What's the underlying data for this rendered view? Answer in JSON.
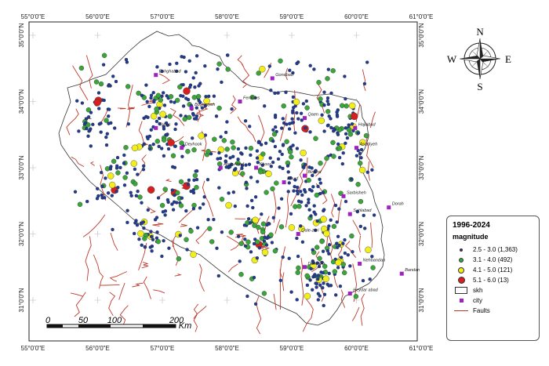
{
  "map": {
    "longitude_labels": [
      "55°0'0\"E",
      "56°0'0\"E",
      "57°0'0\"E",
      "58°0'0\"E",
      "59°0'0\"E",
      "60°0'0\"E",
      "61°0'0\"E"
    ],
    "latitude_labels": [
      "35°0'0\"N",
      "34°0'0\"N",
      "33°0'0\"N",
      "32°0'0\"N",
      "31°0'0\"N"
    ],
    "cities": [
      {
        "name": "Ferdows",
        "lon": 58.2,
        "lat": 34.0
      },
      {
        "name": "Gonabad",
        "lon": 58.7,
        "lat": 34.35
      },
      {
        "name": "Qaen",
        "lon": 59.2,
        "lat": 33.75
      },
      {
        "name": "Birjand",
        "lon": 59.2,
        "lat": 32.88
      },
      {
        "name": "Nehbandan",
        "lon": 60.05,
        "lat": 31.55
      },
      {
        "name": "Sarbisheh",
        "lon": 59.8,
        "lat": 32.57
      },
      {
        "name": "Tabas",
        "lon": 56.9,
        "lat": 33.6
      },
      {
        "name": "Boshruyeh",
        "lon": 57.45,
        "lat": 33.9
      },
      {
        "name": "Deyhook",
        "lon": 57.3,
        "lat": 33.3
      },
      {
        "name": "Arab Abad",
        "lon": 57.9,
        "lat": 33.0
      },
      {
        "name": "Khusf",
        "lon": 58.88,
        "lat": 32.78
      },
      {
        "name": "Khoor",
        "lon": 58.45,
        "lat": 33.0
      },
      {
        "name": "Hajiabad",
        "lon": 59.98,
        "lat": 33.6
      },
      {
        "name": "Eshghabad",
        "lon": 56.9,
        "lat": 34.4
      },
      {
        "name": "Asadiyeh",
        "lon": 60.0,
        "lat": 33.3
      },
      {
        "name": "Dorah",
        "lon": 60.5,
        "lat": 32.4
      },
      {
        "name": "Sahlabad",
        "lon": 59.9,
        "lat": 32.3
      },
      {
        "name": "Qale-zari",
        "lon": 59.1,
        "lat": 32.0
      },
      {
        "name": "Bandan",
        "lon": 60.7,
        "lat": 31.4
      },
      {
        "name": "Dehsalm",
        "lon": 59.2,
        "lat": 31.5
      },
      {
        "name": "Heydar abad",
        "lon": 59.9,
        "lat": 31.1
      }
    ]
  },
  "north_arrow": {
    "n": "N",
    "s": "S",
    "e": "E",
    "w": "W"
  },
  "scale": {
    "labels": [
      "0",
      "50",
      "100",
      "200"
    ],
    "unit": "Km"
  },
  "legend": {
    "title": "1996-2024",
    "subtitle": "magnitude",
    "classes": [
      {
        "label": "2.5 - 3.0 (1,363)",
        "color": "#1f3b9a",
        "size": 4
      },
      {
        "label": "3.1 - 4.0 (492)",
        "color": "#3aa63a",
        "size": 6
      },
      {
        "label": "4.1 - 5.0 (121)",
        "color": "#f2ee1c",
        "size": 8
      },
      {
        "label": "5.1 - 6.0 (13)",
        "color": "#d62020",
        "size": 9
      }
    ],
    "boundary": "skh",
    "city": "city",
    "faults": "Faults",
    "fault_color": "#c0392b",
    "city_color": "#a020c0"
  }
}
